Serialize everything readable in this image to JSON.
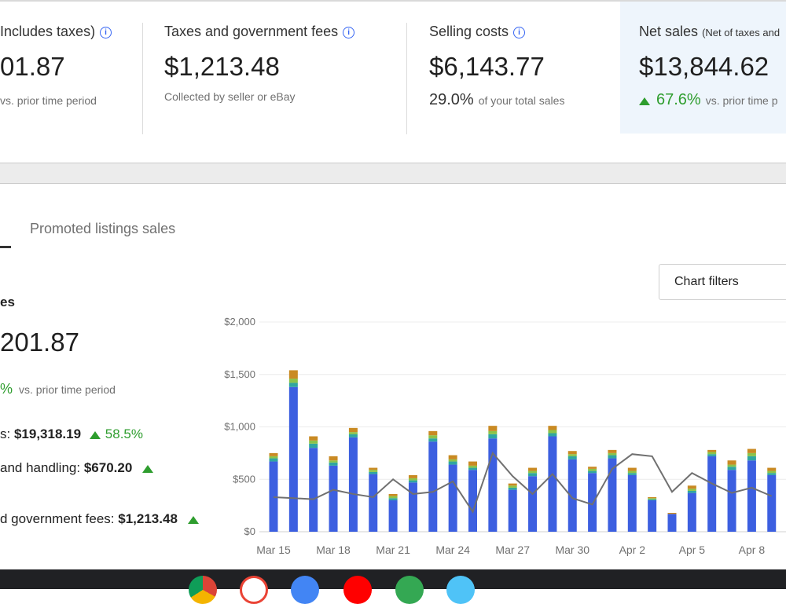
{
  "cards": [
    {
      "title": "Includes taxes)",
      "amount": "01.87",
      "sub": "vs. prior time period"
    },
    {
      "title": "Taxes and government fees",
      "amount": "$1,213.48",
      "sub": "Collected by seller or eBay"
    },
    {
      "title": "Selling costs",
      "amount": "$6,143.77",
      "sub_value": "29.0%",
      "sub": "of your total sales"
    },
    {
      "title": "Net sales",
      "title_small": "(Net of taxes and",
      "amount": "$13,844.62",
      "sub_value": "67.6%",
      "sub": "vs. prior time p"
    }
  ],
  "tabs": {
    "promoted": "Promoted listings sales"
  },
  "left": {
    "title": "es",
    "amount": "201.87",
    "pct": "%",
    "pct_sub": "vs. prior time period",
    "metrics": [
      {
        "label": "s:",
        "value": "$19,318.19",
        "change": "58.5%"
      },
      {
        "label": "and handling:",
        "value": "$670.20"
      },
      {
        "label": "d government fees:",
        "value": "$1,213.48"
      }
    ]
  },
  "chart_filters": "Chart filters",
  "colors": {
    "accent": "#3665f3",
    "green": "#2e9d2e",
    "bar_blue": "#3c5fe0",
    "bar_orange": "#c98a23",
    "bar_teal": "#2fa6a0",
    "line": "#707070"
  },
  "chart_data": {
    "type": "bar",
    "y_ticks": [
      "$2,000",
      "$1,500",
      "$1,000",
      "$500",
      "$0"
    ],
    "ylim": [
      0,
      2000
    ],
    "x_tick_labels": [
      "Mar 15",
      "Mar 18",
      "Mar 21",
      "Mar 24",
      "Mar 27",
      "Mar 30",
      "Apr 2",
      "Apr 5",
      "Apr 8"
    ],
    "categories": [
      "Mar 15",
      "Mar 16",
      "Mar 17",
      "Mar 18",
      "Mar 19",
      "Mar 20",
      "Mar 21",
      "Mar 22",
      "Mar 23",
      "Mar 24",
      "Mar 25",
      "Mar 26",
      "Mar 27",
      "Mar 28",
      "Mar 29",
      "Mar 30",
      "Mar 31",
      "Apr 1",
      "Apr 2",
      "Apr 3",
      "Apr 4",
      "Apr 5",
      "Apr 6",
      "Apr 7",
      "Apr 8",
      "Apr 9"
    ],
    "series": [
      {
        "values": [
          670,
          1380,
          800,
          630,
          900,
          550,
          300,
          470,
          860,
          640,
          590,
          890,
          400,
          530,
          910,
          690,
          560,
          700,
          540,
          300,
          170,
          370,
          720,
          590,
          680,
          540
        ]
      },
      {
        "values": [
          30,
          40,
          40,
          30,
          30,
          20,
          20,
          20,
          30,
          30,
          20,
          40,
          20,
          30,
          30,
          30,
          20,
          30,
          20,
          10,
          0,
          20,
          20,
          30,
          40,
          20
        ]
      },
      {
        "values": [
          20,
          40,
          30,
          20,
          20,
          20,
          20,
          20,
          30,
          20,
          20,
          30,
          20,
          20,
          30,
          20,
          20,
          20,
          20,
          10,
          0,
          20,
          20,
          20,
          30,
          20
        ]
      },
      {
        "values": [
          30,
          80,
          40,
          40,
          40,
          20,
          20,
          30,
          40,
          40,
          40,
          50,
          20,
          30,
          40,
          30,
          20,
          30,
          30,
          10,
          10,
          30,
          20,
          40,
          40,
          30
        ]
      },
      {
        "values": [
          330,
          320,
          310,
          400,
          360,
          330,
          500,
          360,
          380,
          480,
          190,
          750,
          530,
          360,
          550,
          320,
          260,
          600,
          740,
          720,
          380,
          560,
          460,
          370,
          420,
          340
        ]
      }
    ]
  }
}
